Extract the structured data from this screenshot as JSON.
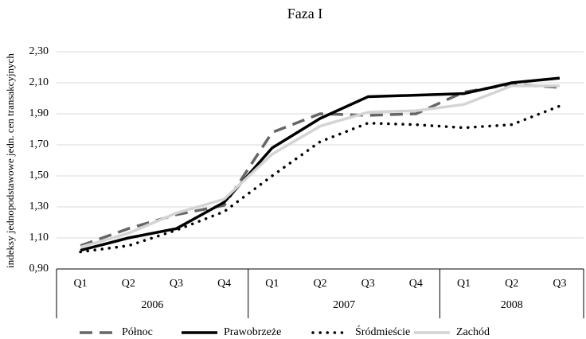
{
  "chart_data": {
    "type": "line",
    "title": "Faza I",
    "y_label": "indeksy jednopodstawowe jedn. cen transakcyjnych",
    "categories": [
      "Q1",
      "Q2",
      "Q3",
      "Q4",
      "Q1",
      "Q2",
      "Q3",
      "Q4",
      "Q1",
      "Q2",
      "Q3"
    ],
    "category_groups": [
      {
        "name": "2006",
        "size": 4
      },
      {
        "name": "2007",
        "size": 4
      },
      {
        "name": "2008",
        "size": 3
      }
    ],
    "series": [
      {
        "name": "Północ",
        "color": "#666666",
        "dash": "dashed",
        "values": [
          1.05,
          1.16,
          1.25,
          1.31,
          1.78,
          1.9,
          1.89,
          1.9,
          2.04,
          2.09,
          2.07
        ]
      },
      {
        "name": "Prawobrzeże",
        "color": "#000000",
        "dash": "solid",
        "values": [
          1.02,
          1.1,
          1.16,
          1.33,
          1.68,
          1.87,
          2.01,
          2.02,
          2.03,
          2.1,
          2.13
        ]
      },
      {
        "name": "Śródmieście",
        "color": "#000000",
        "dash": "dotted",
        "values": [
          1.01,
          1.05,
          1.15,
          1.27,
          1.5,
          1.72,
          1.84,
          1.83,
          1.81,
          1.83,
          1.95
        ]
      },
      {
        "name": "Zachód",
        "color": "#d4d4d4",
        "dash": "solid",
        "values": [
          1.04,
          1.13,
          1.26,
          1.35,
          1.64,
          1.82,
          1.91,
          1.92,
          1.96,
          2.08,
          2.08
        ]
      }
    ],
    "ylim": [
      0.9,
      2.3
    ],
    "yticks": [
      {
        "value": 0.9,
        "label": "0,90"
      },
      {
        "value": 1.1,
        "label": "1,10"
      },
      {
        "value": 1.3,
        "label": "1,30"
      },
      {
        "value": 1.5,
        "label": "1,50"
      },
      {
        "value": 1.7,
        "label": "1,70"
      },
      {
        "value": 1.9,
        "label": "1,90"
      },
      {
        "value": 2.1,
        "label": "2,10"
      },
      {
        "value": 2.3,
        "label": "2,30"
      }
    ],
    "grid": true,
    "legend": "bottom"
  }
}
